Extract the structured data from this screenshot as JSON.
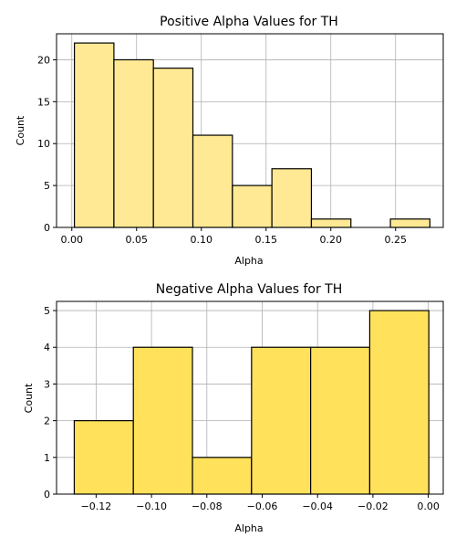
{
  "chart_data": [
    {
      "type": "bar",
      "title": "Positive Alpha Values for TH",
      "xlabel": "Alpha",
      "ylabel": "Count",
      "bar_color": "#FFE994",
      "edge_color": "#000000",
      "xlim": [
        -0.0118,
        0.2868
      ],
      "ylim": [
        0,
        23.1
      ],
      "xticks": [
        0.0,
        0.05,
        0.1,
        0.15,
        0.2,
        0.25
      ],
      "xtick_labels": [
        "0.00",
        "0.05",
        "0.10",
        "0.15",
        "0.20",
        "0.25"
      ],
      "yticks": [
        0,
        5,
        10,
        15,
        20
      ],
      "ytick_labels": [
        "0",
        "5",
        "10",
        "15",
        "20"
      ],
      "grid": true,
      "bins": [
        {
          "x0": 0.002,
          "x1": 0.0325,
          "count": 22
        },
        {
          "x0": 0.0325,
          "x1": 0.063,
          "count": 20
        },
        {
          "x0": 0.063,
          "x1": 0.0935,
          "count": 19
        },
        {
          "x0": 0.0935,
          "x1": 0.124,
          "count": 11
        },
        {
          "x0": 0.124,
          "x1": 0.1545,
          "count": 5
        },
        {
          "x0": 0.1545,
          "x1": 0.185,
          "count": 7
        },
        {
          "x0": 0.185,
          "x1": 0.2155,
          "count": 1
        },
        {
          "x0": 0.2155,
          "x1": 0.246,
          "count": 0
        },
        {
          "x0": 0.246,
          "x1": 0.2765,
          "count": 1
        }
      ]
    },
    {
      "type": "bar",
      "title": "Negative Alpha Values for TH",
      "xlabel": "Alpha",
      "ylabel": "Count",
      "bar_color": "#FFE15C",
      "edge_color": "#000000",
      "xlim": [
        -0.1343,
        0.0054
      ],
      "ylim": [
        0,
        5.25
      ],
      "xticks": [
        -0.12,
        -0.1,
        -0.08,
        -0.06,
        -0.04,
        -0.02,
        0.0
      ],
      "xtick_labels": [
        "−0.12",
        "−0.10",
        "−0.08",
        "−0.06",
        "−0.04",
        "−0.02",
        "0.00"
      ],
      "yticks": [
        0,
        1,
        2,
        3,
        4,
        5
      ],
      "ytick_labels": [
        "0",
        "1",
        "2",
        "3",
        "4",
        "5"
      ],
      "grid": true,
      "bins": [
        {
          "x0": -0.1279,
          "x1": -0.10655,
          "count": 2
        },
        {
          "x0": -0.10655,
          "x1": -0.0852,
          "count": 4
        },
        {
          "x0": -0.0852,
          "x1": -0.06385,
          "count": 1
        },
        {
          "x0": -0.06385,
          "x1": -0.0425,
          "count": 4
        },
        {
          "x0": -0.0425,
          "x1": -0.02115,
          "count": 4
        },
        {
          "x0": -0.02115,
          "x1": 0.0002,
          "count": 5
        }
      ]
    }
  ]
}
